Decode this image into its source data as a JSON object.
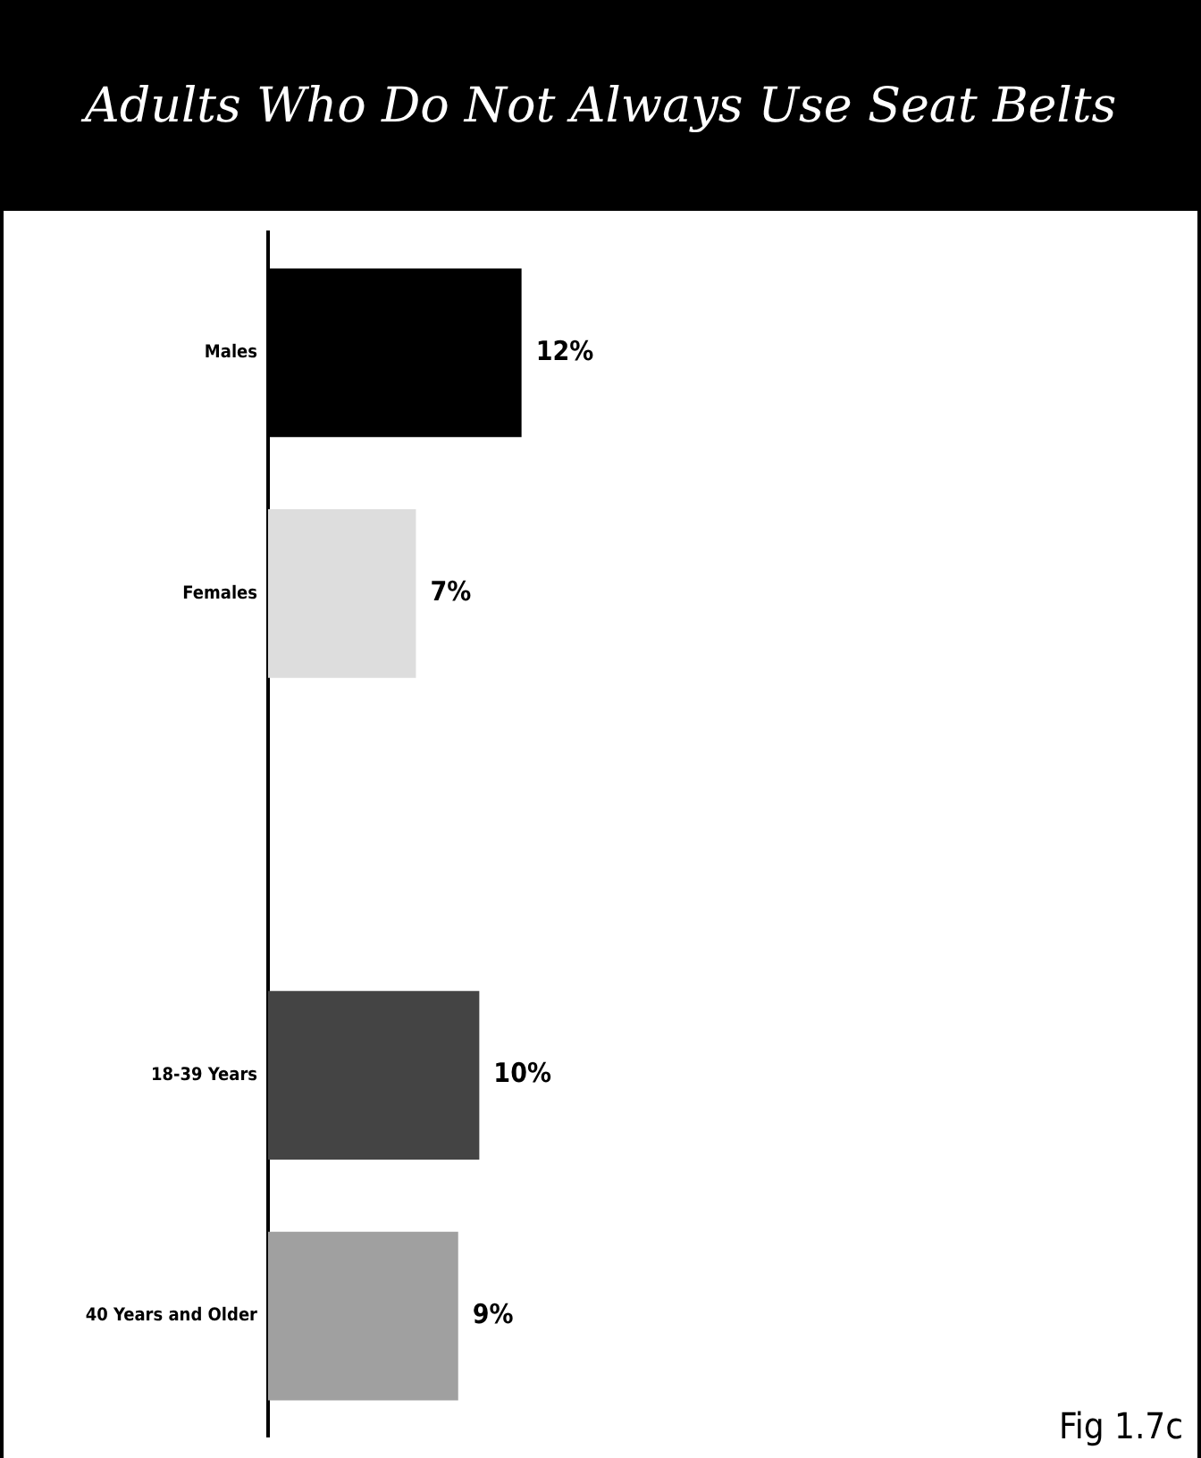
{
  "chart_data": {
    "type": "bar",
    "orientation": "horizontal",
    "title": "Adults Who Do Not Always Use Seat Belts",
    "categories": [
      "Males",
      "Females",
      null,
      "18-39 Years",
      "40 Years and Older"
    ],
    "values": [
      12,
      7,
      null,
      10,
      9
    ],
    "colors": [
      "#000000",
      "#dddddd",
      null,
      "#444444",
      "#a0a0a0"
    ],
    "value_labels": [
      "12%",
      "7%",
      null,
      "10%",
      "9%"
    ],
    "xlim": [
      0,
      44
    ],
    "tick_labels": "y",
    "legend": false,
    "annotations": [
      "Fig 1.7c"
    ]
  }
}
